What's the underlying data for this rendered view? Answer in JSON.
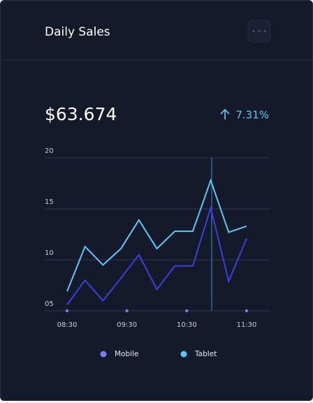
{
  "header": {
    "title": "Daily Sales"
  },
  "summary": {
    "value": "$63.674",
    "change": "7.31%"
  },
  "chart_data": {
    "type": "line",
    "x": [
      8.5,
      8.8,
      9.1,
      9.4,
      9.7,
      10.0,
      10.3,
      10.6,
      10.9,
      11.2,
      11.5
    ],
    "xlim": [
      8.5,
      11.5
    ],
    "xticks": [
      {
        "value": 8.5,
        "label": "08:30"
      },
      {
        "value": 9.5,
        "label": "09:30"
      },
      {
        "value": 10.5,
        "label": "10:30"
      },
      {
        "value": 11.5,
        "label": "11:30"
      }
    ],
    "ylim": [
      5,
      20
    ],
    "yticks": [
      {
        "value": 5,
        "label": "05"
      },
      10,
      15,
      20
    ],
    "grid": true,
    "series": [
      {
        "name": "Mobile",
        "color": "#3a3fe0",
        "marker_color": "#7b7bf2",
        "values": [
          5.6,
          8.0,
          6.0,
          8.2,
          10.5,
          7.1,
          9.4,
          9.4,
          15.1,
          7.9,
          12.1
        ]
      },
      {
        "name": "Tablet",
        "color": "#5ac8fa",
        "marker_color": "#5ac8fa",
        "values": [
          6.9,
          11.3,
          9.5,
          11.1,
          13.9,
          11.1,
          12.8,
          12.8,
          17.8,
          12.7,
          13.3
        ]
      }
    ]
  }
}
